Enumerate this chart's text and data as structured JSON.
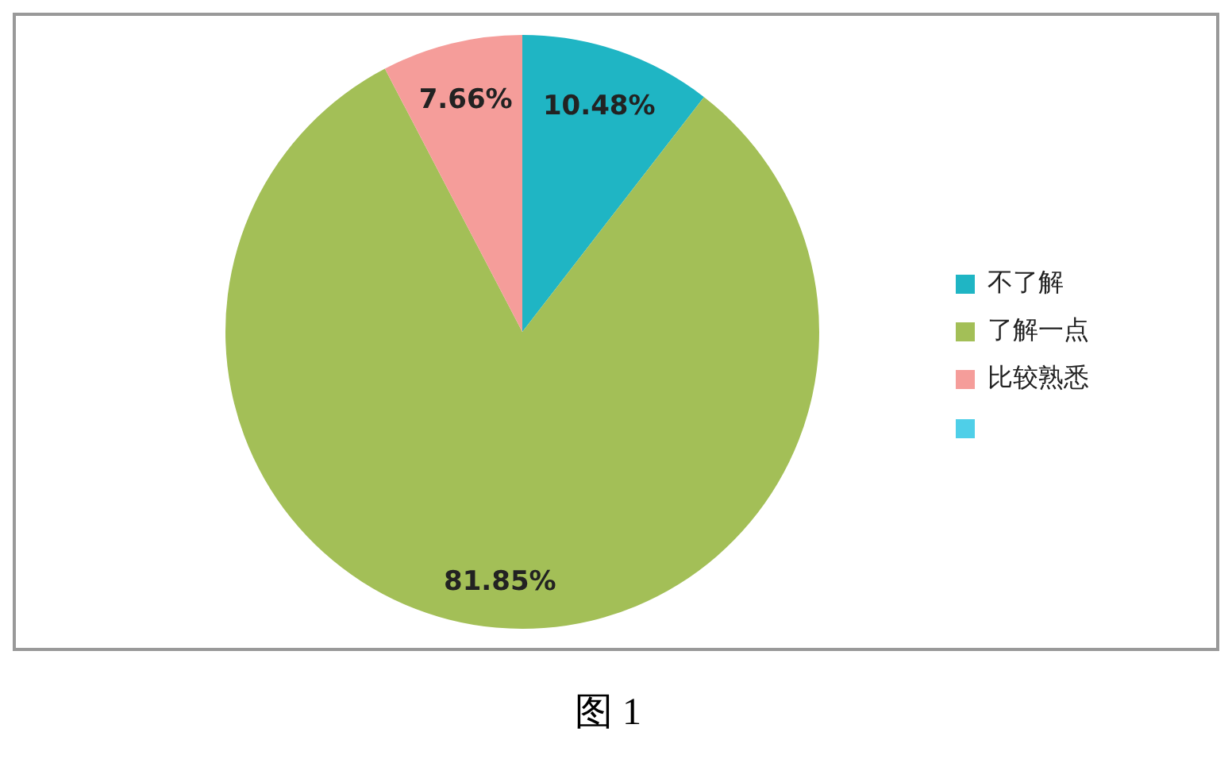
{
  "chart_data": {
    "type": "pie",
    "categories": [
      "不了解",
      "了解一点",
      "比较熟悉"
    ],
    "values": [
      10.48,
      81.85,
      7.66
    ],
    "colors": [
      "#1fb5c4",
      "#a3bf57",
      "#f59d9a"
    ],
    "value_labels": [
      "10.48%",
      "81.85%",
      "7.66%"
    ],
    "legend": "right",
    "annotations": [
      "图 1"
    ]
  }
}
